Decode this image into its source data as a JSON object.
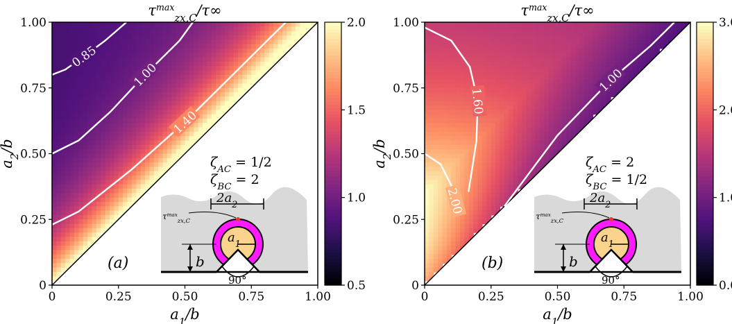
{
  "chart_data": [
    {
      "type": "heatmap",
      "panel_label": "(a)",
      "title_main": "τ",
      "title_sup": "max",
      "title_sub": "zx,C",
      "title_tail": "/τ∞",
      "xlabel_main": "a",
      "xlabel_sub": "1",
      "xlabel_tail": "/b",
      "ylabel_main": "a",
      "ylabel_sub": "2",
      "ylabel_tail": "/b",
      "xlim": [
        0,
        1
      ],
      "ylim": [
        0,
        1
      ],
      "xticks": [
        "0",
        "0.25",
        "0.50",
        "0.75",
        "1.00"
      ],
      "yticks": [
        "0",
        "0.25",
        "0.50",
        "0.75",
        "1.00"
      ],
      "colorbar": {
        "range": [
          0.5,
          2.0
        ],
        "ticks": [
          "0.5",
          "1.0",
          "1.5",
          "2.0"
        ]
      },
      "colormap": "magma",
      "contours": [
        {
          "label": "0.85",
          "points": [
            [
              0.0,
              0.8
            ],
            [
              0.05,
              0.82
            ],
            [
              0.12,
              0.87
            ],
            [
              0.2,
              0.93
            ],
            [
              0.28,
              1.0
            ]
          ]
        },
        {
          "label": "1.00",
          "points": [
            [
              0.0,
              0.5
            ],
            [
              0.1,
              0.55
            ],
            [
              0.22,
              0.66
            ],
            [
              0.35,
              0.8
            ],
            [
              0.48,
              0.93
            ],
            [
              0.53,
              1.0
            ]
          ]
        },
        {
          "label": "1.40",
          "points": [
            [
              0.0,
              0.23
            ],
            [
              0.1,
              0.28
            ],
            [
              0.3,
              0.44
            ],
            [
              0.5,
              0.62
            ],
            [
              0.65,
              0.77
            ],
            [
              0.8,
              0.92
            ],
            [
              0.88,
              1.0
            ]
          ]
        }
      ],
      "annotation_lines": [
        {
          "symbol": "ζ",
          "sub": "AC",
          "value": "= 1/2"
        },
        {
          "symbol": "ζ",
          "sub": "BC",
          "value": "= 2"
        }
      ],
      "inset": {
        "width_label": "2a",
        "width_sub": "2",
        "radius_label": "a",
        "radius_sub": "1",
        "depth_label": "b",
        "angle_label": "90°",
        "point_label_main": "τ",
        "point_label_sup": "max",
        "point_label_sub": "zx,C"
      }
    },
    {
      "type": "heatmap",
      "panel_label": "(b)",
      "title_main": "τ",
      "title_sup": "max",
      "title_sub": "zx,C",
      "title_tail": "/τ∞",
      "xlabel_main": "a",
      "xlabel_sub": "1",
      "xlabel_tail": "/b",
      "ylabel_main": "a",
      "ylabel_sub": "2",
      "ylabel_tail": "/b",
      "xlim": [
        0,
        1
      ],
      "ylim": [
        0,
        1
      ],
      "xticks": [
        "0",
        "0.25",
        "0.50",
        "0.75",
        "1.00"
      ],
      "yticks": [
        "0",
        "0.25",
        "0.50",
        "0.75",
        "1.00"
      ],
      "colorbar": {
        "range": [
          0.0,
          3.0
        ],
        "ticks": [
          "0.0",
          "1.0",
          "2.0",
          "3.0"
        ]
      },
      "colormap": "magma",
      "contours": [
        {
          "label": "1.60",
          "points": [
            [
              0.0,
              0.98
            ],
            [
              0.1,
              0.93
            ],
            [
              0.17,
              0.83
            ],
            [
              0.2,
              0.7
            ],
            [
              0.195,
              0.55
            ],
            [
              0.18,
              0.45
            ],
            [
              0.165,
              0.355
            ]
          ]
        },
        {
          "label": "1.00",
          "points": [
            [
              0.3,
              0.3
            ],
            [
              0.5,
              0.57
            ],
            [
              0.7,
              0.78
            ],
            [
              0.85,
              0.91
            ],
            [
              0.94,
              1.0
            ]
          ]
        },
        {
          "label": "2.00",
          "points": [
            [
              0.0,
              0.5
            ],
            [
              0.06,
              0.46
            ],
            [
              0.1,
              0.38
            ],
            [
              0.115,
              0.32
            ],
            [
              0.12,
              0.3
            ],
            [
              0.125,
              0.28
            ]
          ]
        }
      ],
      "annotation_lines": [
        {
          "symbol": "ζ",
          "sub": "AC",
          "value": "= 2"
        },
        {
          "symbol": "ζ",
          "sub": "BC",
          "value": "= 1/2"
        }
      ],
      "inset": {
        "width_label": "2a",
        "width_sub": "2",
        "radius_label": "a",
        "radius_sub": "1",
        "depth_label": "b",
        "angle_label": "90°",
        "point_label_main": "τ",
        "point_label_sup": "max",
        "point_label_sub": "zx,C"
      }
    }
  ]
}
